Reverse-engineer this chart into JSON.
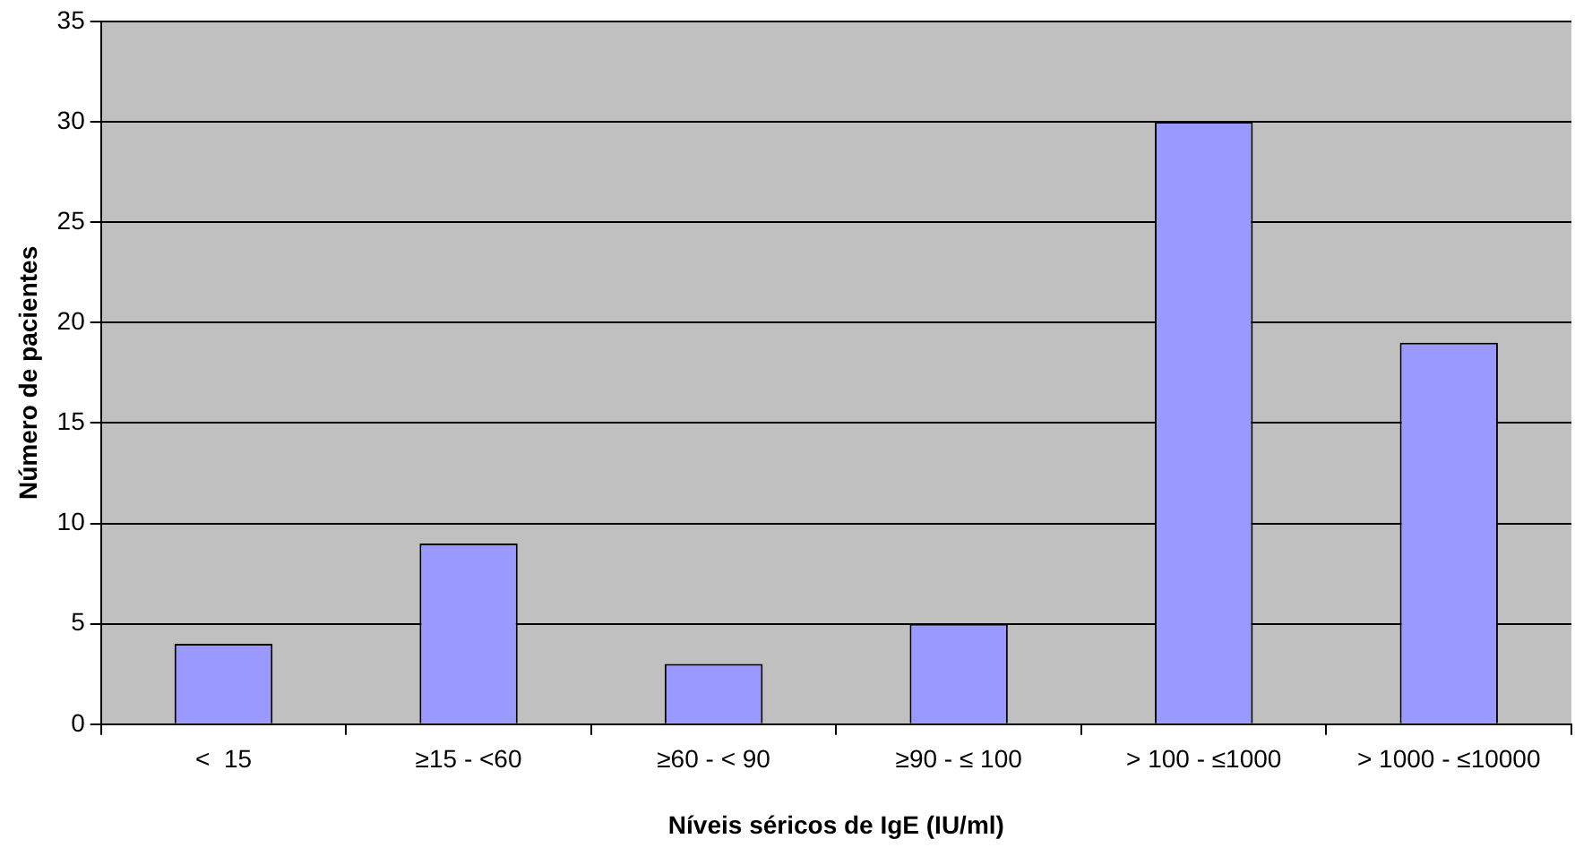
{
  "chart_data": {
    "type": "bar",
    "xlabel": "Níveis séricos de IgE (IU/ml)",
    "ylabel": "Número de pacientes",
    "categories": [
      "<  15",
      "≥15 - <60",
      "≥60 - < 90",
      "≥90 - ≤ 100",
      "> 100 - ≤1000",
      "> 1000 - ≤10000"
    ],
    "values": [
      4,
      9,
      3,
      5,
      30,
      19
    ],
    "color": "#9999ff",
    "ylim": [
      0,
      35
    ],
    "yticks": [
      0,
      5,
      10,
      15,
      20,
      25,
      30,
      35
    ],
    "grid": "y",
    "legend": false
  }
}
